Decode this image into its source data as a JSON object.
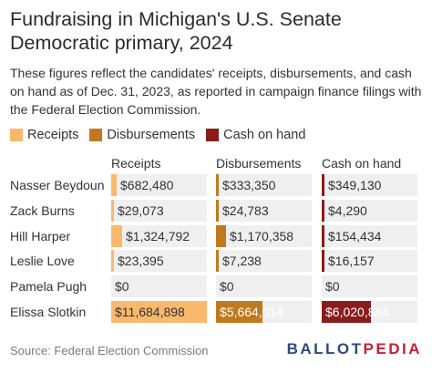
{
  "header": {
    "title": "Fundraising in Michigan's U.S. Senate Democratic primary, 2024",
    "subtitle": "These figures reflect the candidates' receipts, disbursements, and cash on hand as of Dec. 31, 2023, as reported in campaign finance filings with the Federal Election Commission."
  },
  "legend": [
    {
      "label": "Receipts",
      "color": "#f9b86b"
    },
    {
      "label": "Disbursements",
      "color": "#c07a1e"
    },
    {
      "label": "Cash on hand",
      "color": "#8a1c1c"
    }
  ],
  "chart_data": {
    "type": "table",
    "columns": [
      "Receipts",
      "Disbursements",
      "Cash on hand"
    ],
    "colors": [
      "#f9b86b",
      "#c07a1e",
      "#8a1c1c"
    ],
    "rows": [
      {
        "name": "Nasser Beydoun",
        "labels": [
          "$682,480",
          "$333,350",
          "$349,130"
        ],
        "values": [
          682480,
          333350,
          349130
        ]
      },
      {
        "name": "Zack Burns",
        "labels": [
          "$29,073",
          "$24,783",
          "$4,290"
        ],
        "values": [
          29073,
          24783,
          4290
        ]
      },
      {
        "name": "Hill Harper",
        "labels": [
          "$1,324,792",
          "$1,170,358",
          "$154,434"
        ],
        "values": [
          1324792,
          1170358,
          154434
        ]
      },
      {
        "name": "Leslie Love",
        "labels": [
          "$23,395",
          "$7,238",
          "$16,157"
        ],
        "values": [
          23395,
          7238,
          16157
        ]
      },
      {
        "name": "Pamela Pugh",
        "labels": [
          "$0",
          "$0",
          "$0"
        ],
        "values": [
          0,
          0,
          0
        ]
      },
      {
        "name": "Elissa Slotkin",
        "labels": [
          "$11,684,898",
          "$5,664,014",
          "$6,020,884"
        ],
        "values": [
          11684898,
          5664014,
          6020884
        ]
      }
    ]
  },
  "footer": {
    "source": "Source: Federal Election Commission",
    "logo_main": "BALLOT",
    "logo_accent": "PEDIA"
  }
}
